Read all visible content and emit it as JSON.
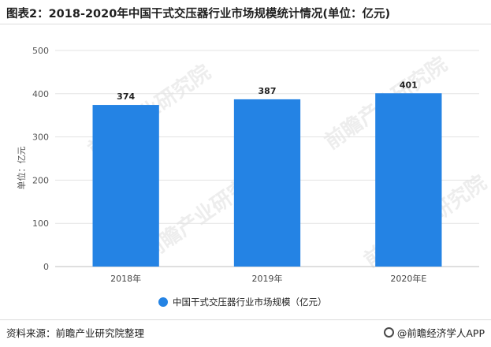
{
  "title": "图表2：2018-2020年中国干式交压器行业市场规模统计情况(单位：亿元)",
  "source": "资料来源：前瞻产业研究院整理",
  "brand": "@前瞻经济学人APP",
  "colors": {
    "bar": "#2483e4",
    "grid": "#e3e3e3",
    "axis": "#bfbfbf"
  },
  "chart_data": {
    "type": "bar",
    "categories": [
      "2018年",
      "2019年",
      "2020年E"
    ],
    "values": [
      374,
      387,
      401
    ],
    "ylabel": "单位：亿元",
    "ylim": [
      0,
      500
    ],
    "yticks": [
      0,
      100,
      200,
      300,
      400,
      500
    ],
    "legend": {
      "label": "中国干式交压器行业市场规模（亿元）",
      "position": "bottom"
    },
    "grid": true
  }
}
